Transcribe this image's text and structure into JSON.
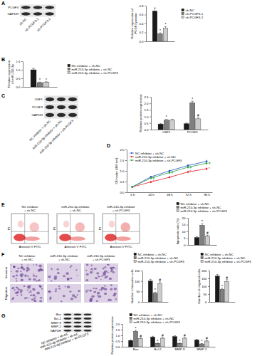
{
  "panel_labels": [
    "A",
    "B",
    "C",
    "D",
    "E",
    "F",
    "G"
  ],
  "blots": [
    {
      "rows": [
        "PCGF3",
        "GAPDH"
      ],
      "lanes": [
        "sh-NC",
        "sh-PCGF3-1",
        "sh-PCGF3-2"
      ]
    },
    {
      "rows": [
        "USF1",
        "PCGF3",
        "GAPDH"
      ],
      "lanes": [
        "NC inhibitor + sh-NC",
        "miR-210-3p inhibitor + sh-NC",
        "miR-210-3p inhibitor + sh-PCGF3"
      ]
    },
    {
      "rows": [
        "Bax",
        "Bcl-2",
        "MMP-9",
        "MMP-2",
        "GAPDH"
      ],
      "lanes": [
        "NC inhibitor + sh-NC",
        "miR-210-3p inhibitor + sh-NC",
        "miR-210-3p inhibitor + sh-PCGF3"
      ]
    }
  ],
  "flow": {
    "titles": [
      [
        "NC inhibitor",
        "+ sh-NC"
      ],
      [
        "miR-210-3p inhibitor",
        "+ sh-NC"
      ],
      [
        "miR-210-3p inhibitor",
        "+ sh-PCGF3"
      ]
    ],
    "x_label": "Annexin V FITC",
    "y_label": "PI"
  },
  "images": {
    "rows": [
      "Invasion",
      "Migration"
    ],
    "titles": [
      [
        "NC inhibitor",
        "+ sh-NC"
      ],
      [
        "miR-210-3p inhibitor",
        "+ sh-NC"
      ],
      [
        "miR-210-3p inhibitor",
        "+ sh-PCGF3"
      ]
    ]
  },
  "chart_data": [
    {
      "type": "bar",
      "y_label": [
        "Relative expression of",
        "PCGF3 protein"
      ],
      "categories": [
        null
      ],
      "series": [
        {
          "name": "sh-NC",
          "color": "#1a1a1a",
          "values": [
            0.68
          ],
          "errors": [
            0.07
          ]
        },
        {
          "name": "sh-PCGF3-1",
          "color": "#808080",
          "values": [
            0.17
          ],
          "errors": [
            0.02
          ],
          "annotations": [
            "*"
          ]
        },
        {
          "name": "sh-PCGF3-2",
          "color": "#cccccc",
          "values": [
            0.3
          ],
          "errors": [
            0.03
          ],
          "annotations": [
            "*"
          ]
        }
      ],
      "ylim": [
        0,
        0.8
      ],
      "yticks": [
        {
          "value": 0,
          "label": "0.0"
        },
        {
          "value": 0.2,
          "label": "0.2"
        },
        {
          "value": 0.4,
          "label": "0.4"
        },
        {
          "value": 0.6,
          "label": "0.6"
        },
        {
          "value": 0.8,
          "label": "0.8"
        }
      ],
      "legend": "right"
    },
    {
      "type": "bar",
      "y_label": [
        "Relative expression",
        "of miR-210-3p"
      ],
      "categories": [
        null
      ],
      "series": [
        {
          "name": "NC inhibitor + sh-NC",
          "color": "#1a1a1a",
          "values": [
            1.0
          ],
          "errors": [
            0.08
          ]
        },
        {
          "name": "miR-210-3p inhibitor + sh-NC",
          "color": "#808080",
          "values": [
            0.25
          ],
          "errors": [
            0.03
          ],
          "annotations": [
            "*"
          ]
        },
        {
          "name": "miR-210-3p inhibitor + sh-PCGF3",
          "color": "#cccccc",
          "values": [
            0.27
          ],
          "errors": [
            0.03
          ],
          "annotations": [
            "*"
          ]
        }
      ],
      "ylim": [
        0,
        1.5
      ],
      "yticks": [
        {
          "value": 0,
          "label": "0.0"
        },
        {
          "value": 0.5,
          "label": "0.5"
        },
        {
          "value": 1,
          "label": "1.0"
        },
        {
          "value": 1.5,
          "label": "1.5"
        }
      ],
      "legend": "right"
    },
    {
      "type": "bar",
      "y_label": [
        "Relative protein expression"
      ],
      "categories": [
        "USF1",
        "PCGF3"
      ],
      "series": [
        {
          "color": "#1a1a1a",
          "values": [
            0.42,
            0.45
          ],
          "errors": [
            0.04,
            0.05
          ]
        },
        {
          "color": "#808080",
          "values": [
            0.72,
            2.05
          ],
          "errors": [
            0.06,
            0.12
          ],
          "annotations": [
            "*",
            "*"
          ]
        },
        {
          "color": "#cccccc",
          "values": [
            0.73,
            0.82
          ],
          "errors": [
            0.06,
            0.07
          ],
          "annotations": [
            null,
            "#"
          ]
        }
      ],
      "ylim": [
        0,
        2.5
      ],
      "yticks": [
        {
          "value": 0,
          "label": "0.0"
        },
        {
          "value": 0.5,
          "label": "0.5"
        },
        {
          "value": 1,
          "label": "1.0"
        },
        {
          "value": 1.5,
          "label": "1.5"
        },
        {
          "value": 2,
          "label": "2.0"
        },
        {
          "value": 2.5,
          "label": "2.5"
        }
      ]
    },
    {
      "type": "line",
      "y_label": [
        "OD value (450 nm)"
      ],
      "categories": [
        "0 h",
        "24 h",
        "48 h",
        "72 h",
        "96 h"
      ],
      "series": [
        {
          "name": "NC inhibitor + sh-NC",
          "color": "#2b50c8",
          "marker": "circle",
          "values": [
            0.25,
            0.72,
            1.0,
            1.25,
            1.45
          ],
          "errors": [
            0.02,
            0.05,
            0.06,
            0.07,
            0.08
          ]
        },
        {
          "name": "miR-210-3p inhibitor + sh-NC",
          "color": "#e0202a",
          "marker": "circle",
          "values": [
            0.25,
            0.48,
            0.7,
            0.95,
            1.1
          ],
          "errors": [
            0.02,
            0.04,
            0.05,
            0.06,
            0.07
          ],
          "annotations": [
            null,
            "*",
            "*",
            "*",
            "*"
          ]
        },
        {
          "name": "miR-210-3p inhibitor + sh-PCGF3",
          "color": "#29a545",
          "marker": "circle",
          "values": [
            0.25,
            0.66,
            0.92,
            1.17,
            1.36
          ],
          "errors": [
            0.02,
            0.04,
            0.05,
            0.06,
            0.07
          ],
          "annotations": [
            null,
            "#",
            "#",
            "#",
            "#"
          ]
        }
      ],
      "ylim": [
        0,
        2
      ],
      "yticks": [
        {
          "value": 0,
          "label": "0.0"
        },
        {
          "value": 0.5,
          "label": "0.5"
        },
        {
          "value": 1,
          "label": "1.0"
        },
        {
          "value": 1.5,
          "label": "1.5"
        },
        {
          "value": 2,
          "label": "2.0"
        }
      ],
      "legend": "top-left"
    },
    {
      "type": "bar",
      "y_label": [
        "Apoptosis rate (%)"
      ],
      "categories": [
        null
      ],
      "series": [
        {
          "name": "NC inhibitor + sh-NC",
          "color": "#1a1a1a",
          "values": [
            5.5
          ],
          "errors": [
            0.6
          ]
        },
        {
          "name": "miR-210-3p inhibitor + sh-NC",
          "color": "#808080",
          "values": [
            14.5
          ],
          "errors": [
            1.2
          ],
          "annotations": [
            "*"
          ]
        },
        {
          "name": "miR-210-3p inhibitor + sh-PCGF3",
          "color": "#cccccc",
          "values": [
            6.5
          ],
          "errors": [
            0.8
          ],
          "annotations": [
            "#"
          ]
        }
      ],
      "ylim": [
        0,
        20
      ],
      "yticks": [
        0,
        5,
        10,
        15,
        20
      ],
      "legend": "top"
    },
    {
      "type": "bar",
      "y_label": [
        "Number of invasive cells"
      ],
      "categories": [
        null
      ],
      "series": [
        {
          "name": "NC inhibitor + sh-NC",
          "color": "#1a1a1a",
          "values": [
            100
          ],
          "errors": [
            8
          ]
        },
        {
          "name": "miR-210-3p inhibitor + sh-NC",
          "color": "#808080",
          "values": [
            42
          ],
          "errors": [
            5
          ],
          "annotations": [
            "*"
          ]
        },
        {
          "name": "miR-210-3p inhibitor + sh-PCGF3",
          "color": "#cccccc",
          "values": [
            88
          ],
          "errors": [
            8
          ],
          "annotations": [
            "#"
          ]
        }
      ],
      "ylim": [
        0,
        150
      ],
      "yticks": [
        0,
        50,
        100,
        150
      ],
      "legend": "top"
    },
    {
      "type": "bar",
      "y_label": [
        "Number of migrated cells"
      ],
      "categories": [
        null
      ],
      "series": [
        {
          "name": "NC inhibitor + sh-NC",
          "color": "#1a1a1a",
          "values": [
            165
          ],
          "errors": [
            10
          ]
        },
        {
          "name": "miR-210-3p inhibitor + sh-NC",
          "color": "#808080",
          "values": [
            80
          ],
          "errors": [
            7
          ],
          "annotations": [
            "*"
          ]
        },
        {
          "name": "miR-210-3p inhibitor + sh-PCGF3",
          "color": "#cccccc",
          "values": [
            130
          ],
          "errors": [
            12
          ],
          "annotations": [
            "#"
          ]
        }
      ],
      "ylim": [
        0,
        200
      ],
      "yticks": [
        0,
        50,
        100,
        150,
        200
      ],
      "legend": "top"
    },
    {
      "type": "bar",
      "y_label": [
        "Relative protein expression"
      ],
      "categories": [
        "Bax",
        "Bcl-2",
        "MMP-9",
        "MMP-2"
      ],
      "series": [
        {
          "name": "NC inhibitor + sh-NC",
          "color": "#1a1a1a",
          "values": [
            0.55,
            0.85,
            0.9,
            0.6
          ],
          "errors": [
            0.05,
            0.07,
            0.07,
            0.05
          ]
        },
        {
          "name": "miR-210-3p inhibitor + sh-NC",
          "color": "#808080",
          "values": [
            1.35,
            0.3,
            0.3,
            0.25
          ],
          "errors": [
            0.1,
            0.03,
            0.03,
            0.03
          ],
          "annotations": [
            "*",
            "*",
            "*",
            "*"
          ]
        },
        {
          "name": "miR-210-3p inhibitor + sh-PCGF3",
          "color": "#cccccc",
          "values": [
            0.7,
            0.75,
            0.75,
            0.5
          ],
          "errors": [
            0.06,
            0.06,
            0.06,
            0.05
          ],
          "annotations": [
            "#",
            "#",
            "#",
            "#"
          ]
        }
      ],
      "ylim": [
        0,
        2
      ],
      "yticks": [
        {
          "value": 0,
          "label": "0.0"
        },
        {
          "value": 0.5,
          "label": "0.5"
        },
        {
          "value": 1,
          "label": "1.0"
        },
        {
          "value": 1.5,
          "label": "1.5"
        },
        {
          "value": 2,
          "label": "2.0"
        }
      ],
      "legend": "top"
    }
  ]
}
